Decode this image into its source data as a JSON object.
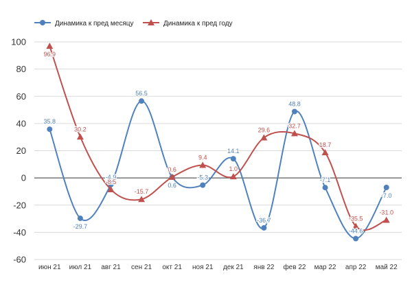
{
  "chart_data": {
    "type": "line",
    "title": "",
    "xlabel": "",
    "ylabel": "",
    "categories": [
      "июн 21",
      "июл 21",
      "авг 21",
      "сен 21",
      "окт 21",
      "ноя 21",
      "дек 21",
      "янв 22",
      "фев 22",
      "мар 22",
      "апр 22",
      "май 22"
    ],
    "ylim": [
      -60,
      100
    ],
    "yticks": [
      "100",
      "80",
      "60",
      "40",
      "20",
      "0",
      "-20",
      "-40",
      "-60"
    ],
    "grid": true,
    "legend_position": "top-left",
    "series": [
      {
        "name": "Динамика к пред месяцу",
        "color": "#4f81bd",
        "marker": "circle",
        "values": [
          35.8,
          -29.7,
          -4.9,
          56.5,
          0.6,
          -5.3,
          14.1,
          -36.7,
          48.8,
          -7.1,
          -44.6,
          -7.0
        ],
        "labels": [
          "35.8",
          "-29.7",
          "-4.9",
          "56.5",
          "0.6",
          "-5.3",
          "14.1",
          "-36.7",
          "48.8",
          "-7.1",
          "-44.6",
          "-7.0"
        ]
      },
      {
        "name": "Динамика к пред году",
        "color": "#c0504d",
        "marker": "triangle",
        "values": [
          96.9,
          30.2,
          -8.5,
          -15.7,
          0.6,
          9.4,
          1.0,
          29.6,
          32.7,
          18.7,
          -35.5,
          -31.0
        ],
        "labels": [
          "96.9",
          "30.2",
          "-8.5",
          "-15.7",
          "0.6",
          "9.4",
          "1.0",
          "29.6",
          "32.7",
          "18.7",
          "-35.5",
          "-31.0"
        ]
      }
    ]
  }
}
